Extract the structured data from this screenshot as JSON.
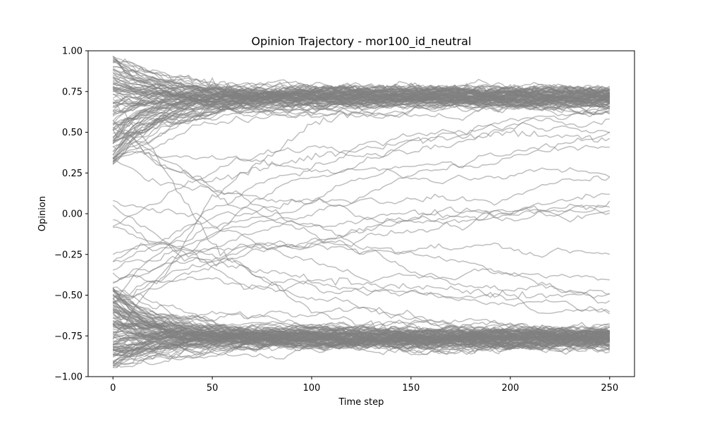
{
  "chart_data": {
    "type": "line",
    "title": "Opinion Trajectory - mor100_id_neutral",
    "xlabel": "Time step",
    "ylabel": "Opinion",
    "xlim": [
      -12.5,
      262.5
    ],
    "ylim": [
      -1.0,
      1.0
    ],
    "x_ticks": [
      0,
      50,
      100,
      150,
      200,
      250
    ],
    "y_ticks": [
      -1.0,
      -0.75,
      -0.5,
      -0.25,
      0.0,
      0.25,
      0.5,
      0.75,
      1.0
    ],
    "x_tick_labels": [
      "0",
      "50",
      "100",
      "150",
      "200",
      "250"
    ],
    "y_tick_labels": [
      "−1.00",
      "−0.75",
      "−0.50",
      "−0.25",
      "0.00",
      "0.25",
      "0.50",
      "0.75",
      "1.00"
    ],
    "grid": false,
    "legend": "none",
    "line_color": "#808080",
    "line_alpha": 0.5,
    "time_steps": 250,
    "series": [
      {
        "x": [
          0,
          25,
          50,
          100,
          150,
          200,
          250
        ],
        "values": [
          0.85,
          0.8,
          0.77,
          0.76,
          0.76,
          0.76,
          0.76
        ]
      },
      {
        "x": [
          0,
          25,
          50,
          100,
          150,
          200,
          250
        ],
        "values": [
          0.62,
          0.7,
          0.74,
          0.75,
          0.75,
          0.75,
          0.75
        ]
      },
      {
        "x": [
          0,
          25,
          50,
          100,
          150,
          200,
          250
        ],
        "values": [
          0.4,
          0.6,
          0.72,
          0.76,
          0.77,
          0.76,
          0.76
        ]
      },
      {
        "x": [
          0,
          25,
          50,
          100,
          150,
          200,
          250
        ],
        "values": [
          0.95,
          0.85,
          0.8,
          0.78,
          0.77,
          0.77,
          0.77
        ]
      },
      {
        "x": [
          0,
          25,
          50,
          100,
          150,
          200,
          250
        ],
        "values": [
          0.7,
          0.3,
          -0.2,
          -0.6,
          -0.74,
          -0.76,
          -0.76
        ]
      },
      {
        "x": [
          0,
          25,
          50,
          100,
          150,
          200,
          250
        ],
        "values": [
          -0.6,
          -0.7,
          -0.74,
          -0.75,
          -0.76,
          -0.76,
          -0.76
        ]
      },
      {
        "x": [
          0,
          25,
          50,
          100,
          150,
          200,
          250
        ],
        "values": [
          -0.85,
          -0.8,
          -0.77,
          -0.76,
          -0.76,
          -0.76,
          -0.76
        ]
      },
      {
        "x": [
          0,
          25,
          50,
          100,
          150,
          200,
          250
        ],
        "values": [
          -0.55,
          -0.4,
          0.1,
          0.55,
          0.72,
          0.75,
          0.75
        ]
      },
      {
        "x": [
          0,
          25,
          50,
          100,
          150,
          200,
          250
        ],
        "values": [
          0.5,
          0.3,
          0.2,
          0.35,
          0.45,
          0.5,
          0.45
        ]
      },
      {
        "x": [
          0,
          25,
          50,
          100,
          150,
          200,
          250
        ],
        "values": [
          -0.3,
          -0.2,
          -0.3,
          -0.4,
          -0.45,
          -0.5,
          -0.5
        ]
      }
    ]
  }
}
